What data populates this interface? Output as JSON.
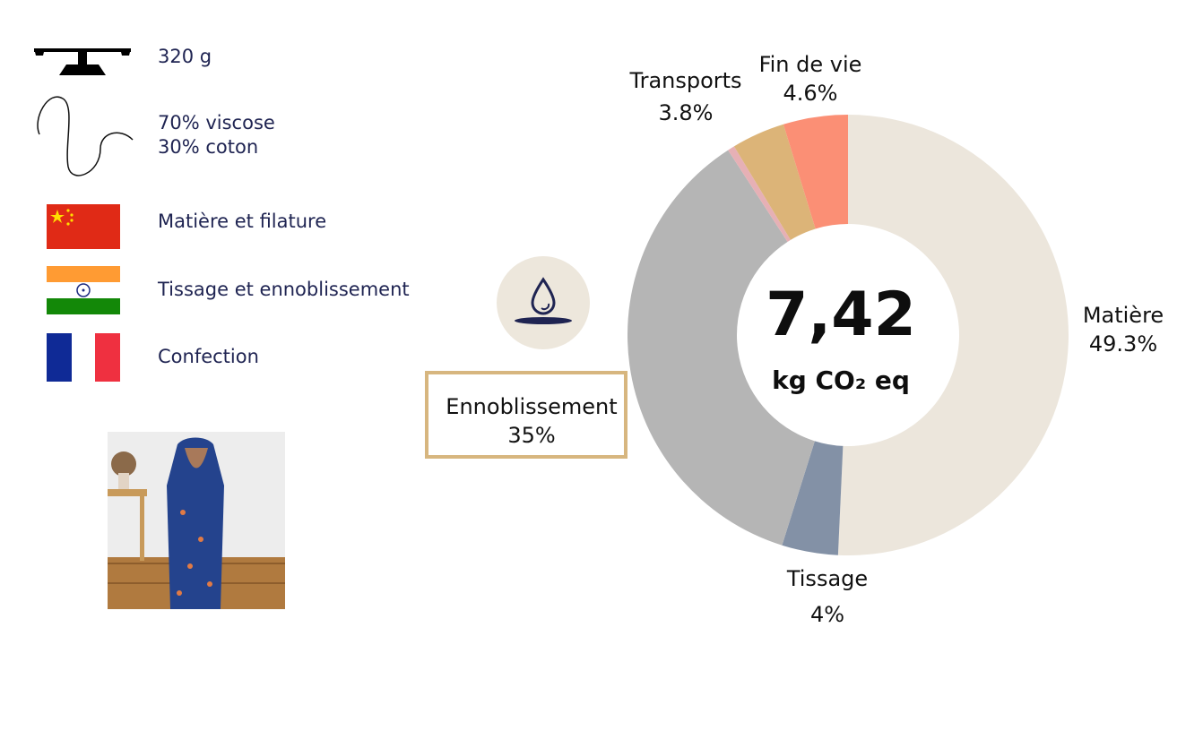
{
  "info": {
    "weight": "320 g",
    "composition_line1": "70% viscose",
    "composition_line2": "30% coton",
    "country1_step": "Matière et filature",
    "country2_step": "Tissage et ennoblissement",
    "country3_step": "Confection"
  },
  "icons": [
    "scale-icon",
    "thread-icon",
    "china-flag",
    "india-flag",
    "france-flag",
    "water-drop-icon"
  ],
  "center": {
    "value": "7,42",
    "unit": "kg CO₂ eq"
  },
  "labels": {
    "matiere_name": "Matière",
    "matiere_pct": "49.3%",
    "tissage_name": "Tissage",
    "tissage_pct": "4%",
    "ennoblissement_name": "Ennoblissement",
    "ennoblissement_pct": "35%",
    "transports_name": "Transports",
    "transports_pct": "3.8%",
    "findevie_name": "Fin de vie",
    "findevie_pct": "4.6%"
  },
  "colors": {
    "highlight": "#d7b67f",
    "text": "#1f2452"
  },
  "chart_data": {
    "type": "pie",
    "categories": [
      "Matière",
      "Tissage",
      "Ennoblissement",
      "Confection",
      "Transports",
      "Fin de vie"
    ],
    "values": [
      49.3,
      4.0,
      35.0,
      0.5,
      3.8,
      4.6
    ],
    "colors": [
      "#ece6dc",
      "#8391a6",
      "#b5b5b5",
      "#e6b0b5",
      "#dcb478",
      "#fb8f75",
      "#2f346a"
    ],
    "center_value": "7,42",
    "center_unit": "kg CO₂ eq"
  }
}
